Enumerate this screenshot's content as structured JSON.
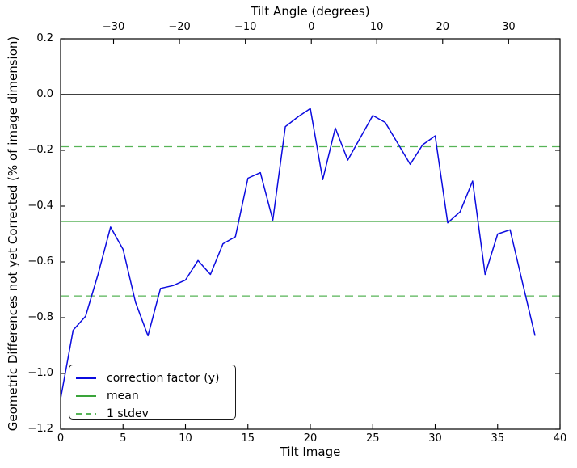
{
  "chart_data": {
    "type": "line",
    "top_axis_label": "Tilt Angle (degrees)",
    "xlabel": "Tilt Image",
    "ylabel": "Geometric Differences not yet Corrected (% of image dimension)",
    "xlim": [
      0,
      40
    ],
    "ylim": [
      -1.2,
      0.2
    ],
    "grid": false,
    "x": [
      0,
      1,
      2,
      3,
      4,
      5,
      6,
      7,
      8,
      9,
      10,
      11,
      12,
      13,
      14,
      15,
      16,
      17,
      18,
      19,
      20,
      21,
      22,
      23,
      24,
      25,
      26,
      27,
      28,
      29,
      30,
      31,
      32,
      33,
      34,
      35,
      36,
      37,
      38
    ],
    "series": [
      {
        "name": "correction factor (y)",
        "color": "#0b0bdf",
        "style": "solid",
        "values": [
          -1.09,
          -0.845,
          -0.795,
          -0.645,
          -0.475,
          -0.555,
          -0.745,
          -0.865,
          -0.695,
          -0.685,
          -0.665,
          -0.595,
          -0.645,
          -0.535,
          -0.51,
          -0.3,
          -0.28,
          -0.45,
          -0.115,
          -0.08,
          -0.05,
          -0.305,
          -0.12,
          -0.235,
          -0.155,
          -0.075,
          -0.1,
          -0.175,
          -0.25,
          -0.18,
          -0.148,
          -0.46,
          -0.42,
          -0.31,
          -0.645,
          -0.5,
          -0.485,
          -0.675,
          -0.865
        ]
      }
    ],
    "mean_line": {
      "label": "mean",
      "value": -0.455,
      "color": "#3aa43a",
      "style": "solid"
    },
    "stdev_lines": {
      "label": "1 stdev",
      "values": [
        -0.187,
        -0.722
      ],
      "color": "#57b457",
      "style": "dashed"
    },
    "zero_line": {
      "value": 0.0,
      "color": "#000000"
    },
    "xticks_bottom": {
      "labels": [
        "0",
        "5",
        "10",
        "15",
        "20",
        "25",
        "30",
        "35",
        "40"
      ],
      "values": [
        0,
        5,
        10,
        15,
        20,
        25,
        30,
        35,
        40
      ]
    },
    "xticks_top": {
      "labels": [
        "−30",
        "−20",
        "−10",
        "0",
        "10",
        "20",
        "30"
      ],
      "fractions": [
        0.106,
        0.238,
        0.37,
        0.502,
        0.633,
        0.765,
        0.897
      ]
    },
    "yticks": {
      "labels": [
        "0.2",
        "0.0",
        "−0.2",
        "−0.4",
        "−0.6",
        "−0.8",
        "−1.0",
        "−1.2"
      ],
      "values": [
        0.2,
        0.0,
        -0.2,
        -0.4,
        -0.6,
        -0.8,
        -1.0,
        -1.2
      ]
    },
    "legend": {
      "position": "lower-left",
      "entries": [
        {
          "label": "correction factor (y)",
          "swatch": "solid-blue"
        },
        {
          "label": "mean",
          "swatch": "solid-green"
        },
        {
          "label": "1 stdev",
          "swatch": "dashed-green"
        }
      ]
    }
  }
}
